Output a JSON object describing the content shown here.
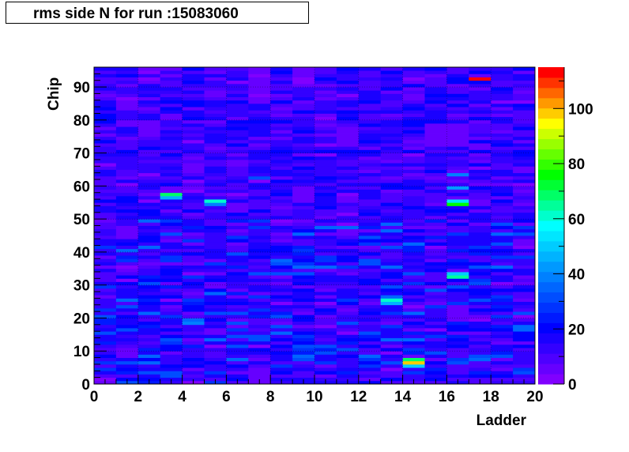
{
  "title": "rms side N for run :15083060",
  "chart_data": {
    "type": "heatmap",
    "title": "rms side N for run :15083060",
    "xlabel": "Ladder",
    "ylabel": "Chip",
    "xlim": [
      0,
      20
    ],
    "ylim": [
      0,
      96
    ],
    "x_bins": 20,
    "y_bins": 96,
    "x_ticks": [
      0,
      2,
      4,
      6,
      8,
      10,
      12,
      14,
      16,
      18,
      20
    ],
    "y_ticks": [
      0,
      10,
      20,
      30,
      40,
      50,
      60,
      70,
      80,
      90
    ],
    "zlim": [
      0,
      115
    ],
    "z_ticks": [
      0,
      20,
      40,
      60,
      80,
      100
    ],
    "palette": [
      "#8000ff",
      "#6600ff",
      "#4d00ff",
      "#3300ff",
      "#1a00ff",
      "#0000ff",
      "#0019ff",
      "#0033ff",
      "#004dff",
      "#0066ff",
      "#0080ff",
      "#0099ff",
      "#00b3ff",
      "#00ccff",
      "#00e6ff",
      "#00ffff",
      "#00ffcc",
      "#00ff99",
      "#00ff66",
      "#00ff33",
      "#00ff00",
      "#33ff00",
      "#66ff00",
      "#99ff00",
      "#ccff00",
      "#ffff00",
      "#ffcc00",
      "#ff9900",
      "#ff6600",
      "#ff3300",
      "#ff0000"
    ],
    "background_level": 14,
    "hot_cells": [
      {
        "x": 3,
        "y": 57,
        "value": 68
      },
      {
        "x": 3,
        "y": 56,
        "value": 45
      },
      {
        "x": 5,
        "y": 55,
        "value": 62
      },
      {
        "x": 5,
        "y": 54,
        "value": 40
      },
      {
        "x": 13,
        "y": 25,
        "value": 60
      },
      {
        "x": 13,
        "y": 24,
        "value": 48
      },
      {
        "x": 14,
        "y": 6,
        "value": 100
      },
      {
        "x": 14,
        "y": 7,
        "value": 70
      },
      {
        "x": 14,
        "y": 5,
        "value": 50
      },
      {
        "x": 16,
        "y": 54,
        "value": 76
      },
      {
        "x": 16,
        "y": 55,
        "value": 55
      },
      {
        "x": 16,
        "y": 59,
        "value": 42
      },
      {
        "x": 16,
        "y": 32,
        "value": 66
      },
      {
        "x": 16,
        "y": 33,
        "value": 50
      },
      {
        "x": 16,
        "y": 63,
        "value": 38
      },
      {
        "x": 17,
        "y": 92,
        "value": 112
      },
      {
        "x": 7,
        "y": 62,
        "value": 30
      },
      {
        "x": 11,
        "y": 47,
        "value": 35
      },
      {
        "x": 12,
        "y": 44,
        "value": 32
      },
      {
        "x": 4,
        "y": 18,
        "value": 38
      },
      {
        "x": 4,
        "y": 19,
        "value": 34
      }
    ],
    "low_regions": [
      {
        "x": 7,
        "y_from": 85,
        "y_to": 95,
        "value": 3
      },
      {
        "x": 9,
        "y_from": 90,
        "y_to": 95,
        "value": 3
      },
      {
        "x": 15,
        "y_from": 72,
        "y_to": 78,
        "value": 5
      },
      {
        "x": 16,
        "y_from": 72,
        "y_to": 78,
        "value": 5
      },
      {
        "x": 11,
        "y_from": 72,
        "y_to": 77,
        "value": 4
      },
      {
        "x": 9,
        "y_from": 55,
        "y_to": 59,
        "value": 5
      },
      {
        "x": 1,
        "y_from": 44,
        "y_to": 47,
        "value": 4
      },
      {
        "x": 1,
        "y_from": 8,
        "y_to": 10,
        "value": 5
      },
      {
        "x": 16,
        "y_from": 20,
        "y_to": 23,
        "value": 5
      },
      {
        "x": 7,
        "y_from": 0,
        "y_to": 4,
        "value": 4
      },
      {
        "x": 0,
        "y_from": 0,
        "y_to": 1,
        "value": 2
      }
    ],
    "grid": true,
    "legend": "color scale on the right"
  }
}
